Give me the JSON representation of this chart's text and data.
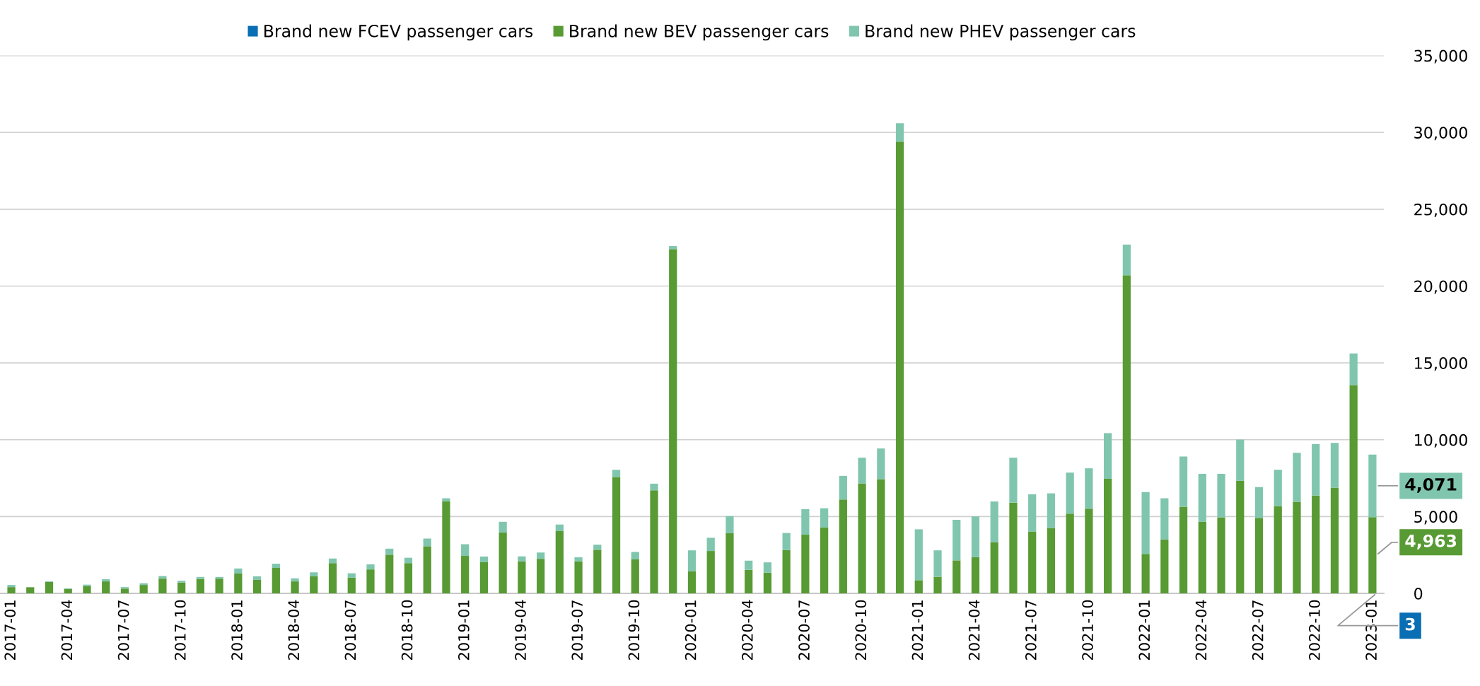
{
  "chart_data": {
    "type": "bar",
    "stacked": true,
    "legend": "top",
    "grid": "y",
    "tick_labels": true,
    "categories": [
      "2017-01",
      null,
      null,
      "2017-04",
      null,
      null,
      "2017-07",
      null,
      null,
      "2017-10",
      null,
      null,
      "2018-01",
      null,
      null,
      "2018-04",
      null,
      null,
      "2018-07",
      null,
      null,
      "2018-10",
      null,
      null,
      "2019-01",
      null,
      null,
      "2019-04",
      null,
      null,
      "2019-07",
      null,
      null,
      "2019-10",
      null,
      null,
      "2020-01",
      null,
      null,
      "2020-04",
      null,
      null,
      "2020-07",
      null,
      null,
      "2020-10",
      null,
      null,
      "2021-01",
      null,
      null,
      "2021-04",
      null,
      null,
      "2021-07",
      null,
      null,
      "2021-10",
      null,
      null,
      "2022-01",
      null,
      null,
      "2022-04",
      null,
      null,
      "2022-07",
      null,
      null,
      "2022-10",
      null,
      null,
      "2023-01"
    ],
    "ylim": [
      0,
      35000
    ],
    "yticks": [
      0,
      {
        "value": 5000,
        "label": "5,000"
      },
      {
        "value": 10000,
        "label": "10,000"
      },
      {
        "value": 15000,
        "label": "15,000"
      },
      {
        "value": 20000,
        "label": "20,000"
      },
      {
        "value": 25000,
        "label": "25,000"
      },
      {
        "value": 30000,
        "label": "30,000"
      },
      {
        "value": 35000,
        "label": "35,000"
      }
    ],
    "series": [
      {
        "name": "Brand new FCEV passenger cars",
        "color": "#0a6eb4",
        "values": [
          null,
          null,
          null,
          null,
          null,
          null,
          null,
          null,
          null,
          null,
          null,
          null,
          null,
          null,
          null,
          null,
          null,
          null,
          null,
          null,
          null,
          null,
          null,
          null,
          null,
          null,
          null,
          null,
          null,
          null,
          null,
          null,
          null,
          null,
          null,
          null,
          null,
          null,
          null,
          null,
          null,
          null,
          null,
          null,
          null,
          null,
          null,
          null,
          null,
          null,
          null,
          null,
          null,
          null,
          null,
          null,
          null,
          null,
          null,
          null,
          null,
          null,
          null,
          null,
          null,
          null,
          null,
          null,
          null,
          null,
          null,
          null,
          3
        ],
        "value_labels": [
          null,
          null,
          null,
          null,
          null,
          null,
          null,
          null,
          null,
          null,
          null,
          null,
          null,
          null,
          null,
          null,
          null,
          null,
          null,
          null,
          null,
          null,
          null,
          null,
          null,
          null,
          null,
          null,
          null,
          null,
          null,
          null,
          null,
          null,
          null,
          null,
          null,
          null,
          null,
          null,
          null,
          null,
          null,
          null,
          null,
          null,
          null,
          null,
          null,
          null,
          null,
          null,
          null,
          null,
          null,
          null,
          null,
          null,
          null,
          null,
          null,
          null,
          null,
          null,
          null,
          null,
          null,
          null,
          null,
          null,
          null,
          null,
          "3"
        ]
      },
      {
        "name": "Brand new BEV passenger cars",
        "color": "#589a33",
        "values": [
          410,
          400,
          740,
          290,
          470,
          780,
          310,
          550,
          960,
          700,
          940,
          960,
          1290,
          880,
          1660,
          780,
          1110,
          1970,
          1020,
          1560,
          2520,
          1970,
          3070,
          6000,
          2440,
          2030,
          3970,
          2090,
          2250,
          4050,
          2090,
          2840,
          7570,
          2210,
          6710,
          22400,
          1450,
          2760,
          3910,
          1530,
          1350,
          2820,
          3820,
          4290,
          6110,
          7160,
          7440,
          29400,
          860,
          1080,
          2150,
          2360,
          3340,
          5910,
          4030,
          4260,
          5190,
          5510,
          7460,
          20700,
          2570,
          3510,
          5640,
          4670,
          4950,
          7330,
          4910,
          5680,
          5960,
          6360,
          6880,
          13560,
          4963
        ],
        "value_labels": [
          null,
          null,
          null,
          null,
          null,
          null,
          null,
          null,
          null,
          null,
          null,
          null,
          null,
          null,
          null,
          null,
          null,
          null,
          null,
          null,
          null,
          null,
          null,
          null,
          null,
          null,
          null,
          null,
          null,
          null,
          null,
          null,
          null,
          null,
          null,
          null,
          null,
          null,
          null,
          null,
          null,
          null,
          null,
          null,
          null,
          null,
          null,
          null,
          null,
          null,
          null,
          null,
          null,
          null,
          null,
          null,
          null,
          null,
          null,
          null,
          null,
          null,
          null,
          null,
          null,
          null,
          null,
          null,
          null,
          null,
          null,
          null,
          "4,963"
        ]
      },
      {
        "name": "Brand new PHEV passenger cars",
        "color": "#80c6ae",
        "values": [
          140,
          null,
          40,
          40,
          100,
          140,
          100,
          110,
          170,
          120,
          130,
          110,
          330,
          230,
          270,
          200,
          260,
          300,
          290,
          330,
          390,
          350,
          500,
          190,
          760,
          370,
          690,
          320,
          410,
          430,
          260,
          330,
          470,
          490,
          430,
          200,
          1350,
          860,
          1120,
          600,
          670,
          1110,
          1660,
          1250,
          1540,
          1670,
          1990,
          1200,
          3310,
          1720,
          2640,
          2650,
          2640,
          2920,
          2420,
          2250,
          2670,
          2630,
          2970,
          2000,
          4030,
          2680,
          3270,
          3110,
          2830,
          2680,
          2010,
          2360,
          3190,
          3350,
          2910,
          2060,
          4071
        ],
        "value_labels": [
          null,
          null,
          null,
          null,
          null,
          null,
          null,
          null,
          null,
          null,
          null,
          null,
          null,
          null,
          null,
          null,
          null,
          null,
          null,
          null,
          null,
          null,
          null,
          null,
          null,
          null,
          null,
          null,
          null,
          null,
          null,
          null,
          null,
          null,
          null,
          null,
          null,
          null,
          null,
          null,
          null,
          null,
          null,
          null,
          null,
          null,
          null,
          null,
          null,
          null,
          null,
          null,
          null,
          null,
          null,
          null,
          null,
          null,
          null,
          null,
          null,
          null,
          null,
          null,
          null,
          null,
          null,
          null,
          null,
          null,
          null,
          null,
          "4,071"
        ]
      }
    ]
  }
}
